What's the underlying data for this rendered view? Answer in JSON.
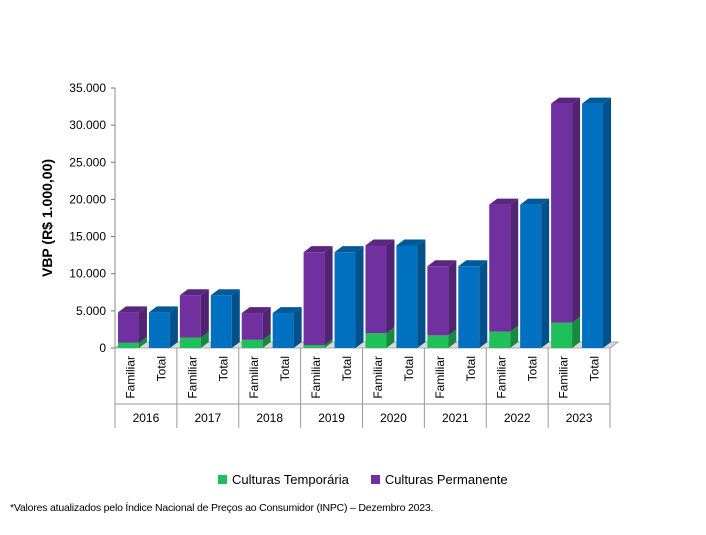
{
  "chart_data": {
    "type": "bar",
    "stacked": true,
    "ylabel": "VBP (R$ 1.000,00)",
    "ylim": [
      0,
      35000
    ],
    "yticks": [
      0,
      5000,
      10000,
      15000,
      20000,
      25000,
      30000,
      35000
    ],
    "ytick_labels": [
      "0",
      "5.000",
      "10.000",
      "15.000",
      "20.000",
      "25.000",
      "30.000",
      "35.000"
    ],
    "years": [
      "2016",
      "2017",
      "2018",
      "2019",
      "2020",
      "2021",
      "2022",
      "2023"
    ],
    "bar_labels": [
      "Familiar",
      "Total"
    ],
    "series": [
      {
        "name": "Culturas Temporária",
        "color": "#1fbf5a",
        "familiar": [
          700,
          1400,
          1100,
          400,
          2000,
          1700,
          2200,
          3400
        ]
      },
      {
        "name": "Culturas Permanente",
        "color": "#7030a0",
        "familiar": [
          4100,
          5700,
          3600,
          12500,
          11800,
          9300,
          17100,
          29500
        ]
      }
    ],
    "total": {
      "name": "Total",
      "color": "#0070c0",
      "values": [
        4800,
        7100,
        4700,
        12900,
        13800,
        11000,
        19300,
        32900
      ]
    }
  },
  "legend": {
    "temporaria": "Culturas Temporária",
    "permanente": "Culturas Permanente"
  },
  "footnote": "*Valores atualizados pelo Índice Nacional de Preços ao Consumidor (INPC) – Dezembro 2023."
}
